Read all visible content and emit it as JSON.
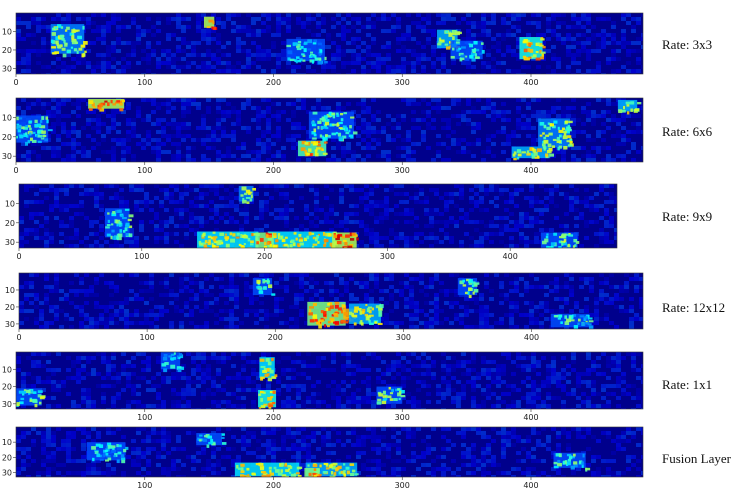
{
  "chart_data": [
    {
      "type": "heatmap",
      "label": "Rate: 3x3",
      "xlim": [
        0,
        487
      ],
      "ylim": [
        0,
        33
      ],
      "xticks": [
        "0",
        "100",
        "200",
        "300",
        "400"
      ],
      "yticks": [
        "10",
        "20",
        "30"
      ],
      "hotspots": [
        {
          "x": 40,
          "y": 14,
          "w": 26,
          "h": 16,
          "v": 0.45
        },
        {
          "x": 150,
          "y": 5,
          "w": 8,
          "h": 6,
          "v": 0.75
        },
        {
          "x": 335,
          "y": 14,
          "w": 16,
          "h": 10,
          "v": 0.5
        },
        {
          "x": 400,
          "y": 19,
          "w": 18,
          "h": 12,
          "v": 0.6
        },
        {
          "x": 225,
          "y": 20,
          "w": 30,
          "h": 12,
          "v": 0.3
        },
        {
          "x": 350,
          "y": 20,
          "w": 25,
          "h": 10,
          "v": 0.3
        }
      ]
    },
    {
      "type": "heatmap",
      "label": "Rate: 6x6",
      "xlim": [
        0,
        487
      ],
      "ylim": [
        0,
        33
      ],
      "xticks": [
        "0",
        "100",
        "200",
        "300",
        "400"
      ],
      "yticks": [
        "10",
        "20",
        "30"
      ],
      "hotspots": [
        {
          "x": 70,
          "y": 3,
          "w": 28,
          "h": 5,
          "v": 0.75
        },
        {
          "x": 230,
          "y": 26,
          "w": 22,
          "h": 8,
          "v": 0.65
        },
        {
          "x": 245,
          "y": 14,
          "w": 35,
          "h": 14,
          "v": 0.4
        },
        {
          "x": 400,
          "y": 28,
          "w": 30,
          "h": 6,
          "v": 0.5
        },
        {
          "x": 418,
          "y": 18,
          "w": 25,
          "h": 15,
          "v": 0.45
        },
        {
          "x": 10,
          "y": 16,
          "w": 30,
          "h": 14,
          "v": 0.35
        },
        {
          "x": 475,
          "y": 4,
          "w": 15,
          "h": 6,
          "v": 0.5
        }
      ]
    },
    {
      "type": "heatmap",
      "label": "Rate: 9x9",
      "xlim": [
        0,
        487
      ],
      "ylim": [
        0,
        33
      ],
      "xticks": [
        "0",
        "100",
        "200",
        "300",
        "400"
      ],
      "yticks": [
        "10",
        "20",
        "30"
      ],
      "hotspots": [
        {
          "x": 170,
          "y": 29,
          "w": 50,
          "h": 9,
          "v": 0.55
        },
        {
          "x": 230,
          "y": 29,
          "w": 55,
          "h": 9,
          "v": 0.55
        },
        {
          "x": 265,
          "y": 29,
          "w": 20,
          "h": 8,
          "v": 0.75
        },
        {
          "x": 200,
          "y": 29,
          "w": 15,
          "h": 8,
          "v": 0.7
        },
        {
          "x": 185,
          "y": 5,
          "w": 12,
          "h": 8,
          "v": 0.45
        },
        {
          "x": 80,
          "y": 20,
          "w": 20,
          "h": 15,
          "v": 0.35
        },
        {
          "x": 440,
          "y": 29,
          "w": 30,
          "h": 8,
          "v": 0.4
        }
      ]
    },
    {
      "type": "heatmap",
      "label": "Rate: 12x12",
      "xlim": [
        0,
        487
      ],
      "ylim": [
        0,
        33
      ],
      "xticks": [
        "0",
        "100",
        "200",
        "300",
        "400"
      ],
      "yticks": [
        "10",
        "20",
        "30"
      ],
      "hotspots": [
        {
          "x": 240,
          "y": 24,
          "w": 30,
          "h": 14,
          "v": 0.7
        },
        {
          "x": 258,
          "y": 24,
          "w": 10,
          "h": 6,
          "v": 0.9
        },
        {
          "x": 270,
          "y": 24,
          "w": 25,
          "h": 12,
          "v": 0.5
        },
        {
          "x": 190,
          "y": 8,
          "w": 15,
          "h": 10,
          "v": 0.4
        },
        {
          "x": 350,
          "y": 8,
          "w": 15,
          "h": 10,
          "v": 0.4
        },
        {
          "x": 430,
          "y": 28,
          "w": 30,
          "h": 8,
          "v": 0.35
        }
      ]
    },
    {
      "type": "heatmap",
      "label": "Rate: 1x1",
      "xlim": [
        0,
        487
      ],
      "ylim": [
        0,
        33
      ],
      "xticks": [
        "100",
        "200",
        "300",
        "400"
      ],
      "yticks": [
        "10",
        "20",
        "30"
      ],
      "hotspots": [
        {
          "x": 195,
          "y": 9,
          "w": 12,
          "h": 12,
          "v": 0.55
        },
        {
          "x": 195,
          "y": 27,
          "w": 14,
          "h": 10,
          "v": 0.6
        },
        {
          "x": 10,
          "y": 26,
          "w": 20,
          "h": 10,
          "v": 0.4
        },
        {
          "x": 290,
          "y": 25,
          "w": 20,
          "h": 10,
          "v": 0.4
        },
        {
          "x": 120,
          "y": 5,
          "w": 15,
          "h": 10,
          "v": 0.3
        }
      ]
    },
    {
      "type": "heatmap",
      "label": "Fusion Layer",
      "xlim": [
        0,
        487
      ],
      "ylim": [
        0,
        33
      ],
      "xticks": [
        "100",
        "200",
        "300",
        "400"
      ],
      "yticks": [
        "10",
        "20",
        "30"
      ],
      "hotspots": [
        {
          "x": 195,
          "y": 28,
          "w": 50,
          "h": 9,
          "v": 0.55
        },
        {
          "x": 245,
          "y": 28,
          "w": 40,
          "h": 9,
          "v": 0.5
        },
        {
          "x": 230,
          "y": 30,
          "w": 12,
          "h": 6,
          "v": 0.7
        },
        {
          "x": 430,
          "y": 22,
          "w": 25,
          "h": 10,
          "v": 0.35
        },
        {
          "x": 70,
          "y": 16,
          "w": 30,
          "h": 12,
          "v": 0.3
        },
        {
          "x": 150,
          "y": 8,
          "w": 20,
          "h": 8,
          "v": 0.3
        }
      ]
    }
  ]
}
